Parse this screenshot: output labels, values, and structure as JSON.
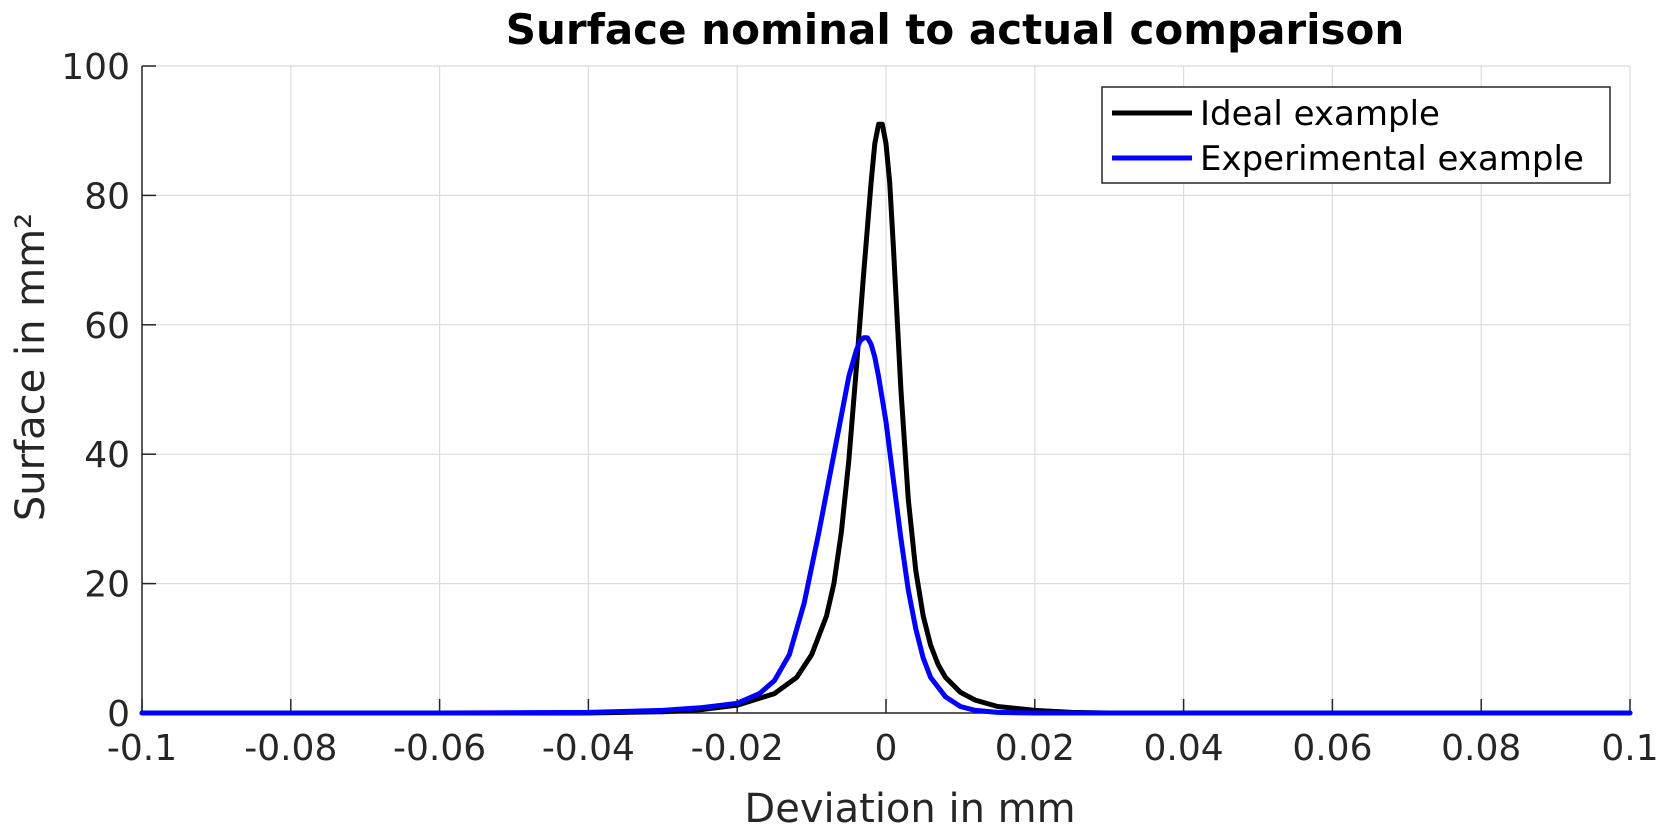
{
  "chart_data": {
    "type": "line",
    "title": "Surface nominal to actual comparison",
    "xlabel": "Deviation in mm",
    "ylabel": "Surface in mm²",
    "xlim": [
      -0.1,
      0.1
    ],
    "ylim": [
      0,
      100
    ],
    "x_ticks": [
      -0.1,
      -0.08,
      -0.06,
      -0.04,
      -0.02,
      0,
      0.02,
      0.04,
      0.06,
      0.08,
      0.1
    ],
    "x_tick_labels": [
      "-0.1",
      "-0.08",
      "-0.06",
      "-0.04",
      "-0.02",
      "0",
      "0.02",
      "0.04",
      "0.06",
      "0.08",
      "0.1"
    ],
    "y_ticks": [
      0,
      20,
      40,
      60,
      80,
      100
    ],
    "y_tick_labels": [
      "0",
      "20",
      "40",
      "60",
      "80",
      "100"
    ],
    "grid": true,
    "legend_position": "top-right",
    "series": [
      {
        "name": "Ideal example",
        "color": "#000000",
        "x": [
          -0.1,
          -0.06,
          -0.04,
          -0.03,
          -0.025,
          -0.02,
          -0.015,
          -0.012,
          -0.01,
          -0.008,
          -0.007,
          -0.006,
          -0.005,
          -0.004,
          -0.003,
          -0.002,
          -0.0015,
          -0.001,
          -0.0005,
          0,
          0.0005,
          0.001,
          0.002,
          0.003,
          0.004,
          0.005,
          0.006,
          0.007,
          0.008,
          0.01,
          0.012,
          0.015,
          0.02,
          0.025,
          0.03,
          0.04,
          0.06,
          0.1
        ],
        "y": [
          0,
          0,
          0,
          0.2,
          0.5,
          1.2,
          3,
          5.5,
          9,
          15,
          20,
          28,
          39,
          53,
          68,
          82,
          88,
          91,
          91,
          88,
          82,
          72,
          50,
          33,
          22,
          15,
          10.5,
          7.5,
          5.5,
          3.2,
          2,
          1,
          0.4,
          0.1,
          0,
          0,
          0,
          0
        ]
      },
      {
        "name": "Experimental example",
        "color": "#0000ff",
        "x": [
          -0.1,
          -0.06,
          -0.04,
          -0.03,
          -0.025,
          -0.02,
          -0.017,
          -0.015,
          -0.013,
          -0.011,
          -0.009,
          -0.007,
          -0.006,
          -0.005,
          -0.004,
          -0.0035,
          -0.003,
          -0.0025,
          -0.002,
          -0.0015,
          -0.001,
          0,
          0.001,
          0.002,
          0.003,
          0.004,
          0.005,
          0.006,
          0.008,
          0.01,
          0.012,
          0.015,
          0.02,
          0.03,
          0.06,
          0.1
        ],
        "y": [
          0,
          0,
          0.1,
          0.4,
          0.8,
          1.5,
          3,
          5,
          9,
          17,
          28,
          40,
          46,
          52,
          56,
          57.5,
          58,
          58,
          57,
          55,
          52,
          45,
          36,
          27,
          19,
          13,
          8.5,
          5.5,
          2.5,
          1,
          0.4,
          0.1,
          0,
          0,
          0,
          0
        ]
      }
    ]
  }
}
